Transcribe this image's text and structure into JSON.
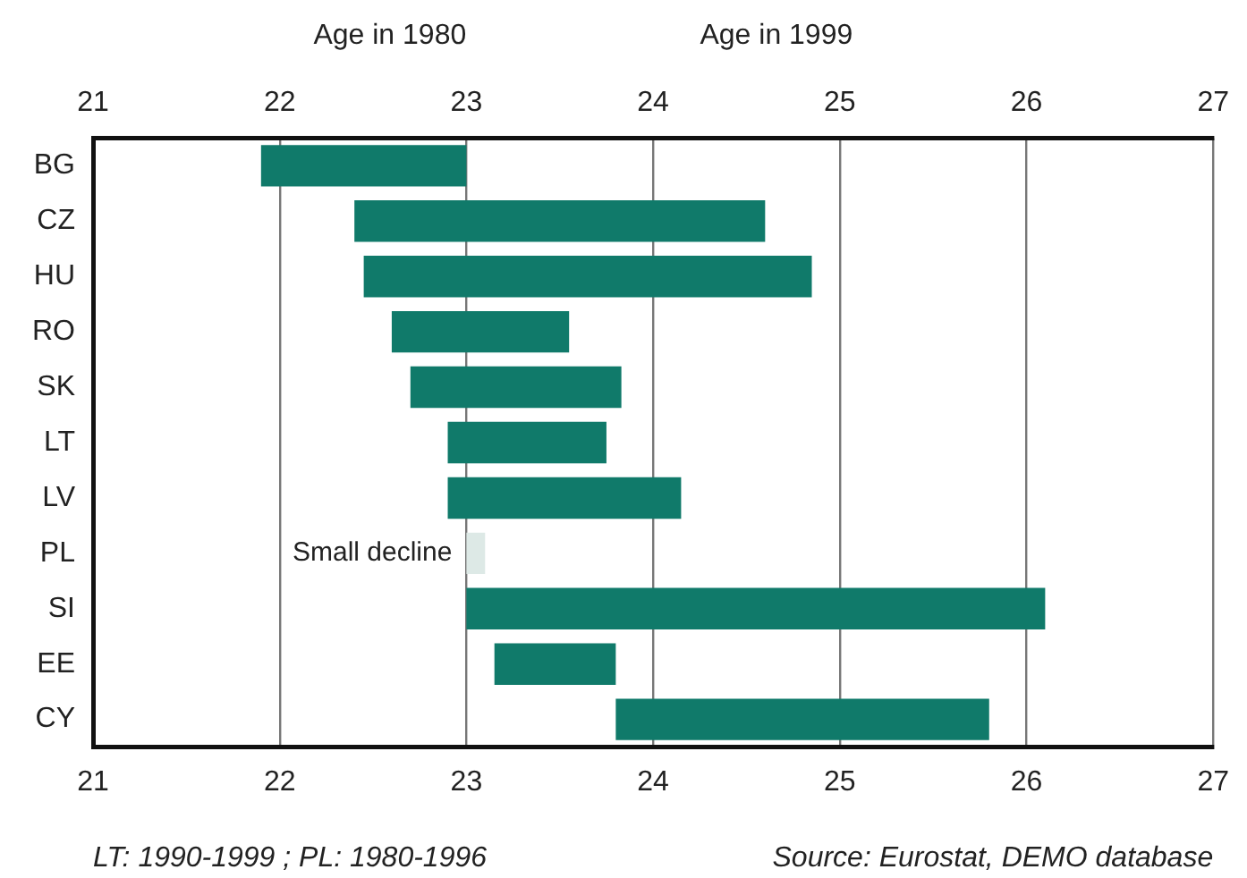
{
  "chart_data": {
    "type": "bar",
    "orientation": "horizontal",
    "categories": [
      "BG",
      "CZ",
      "HU",
      "RO",
      "SK",
      "LT",
      "LV",
      "PL",
      "SI",
      "EE",
      "CY"
    ],
    "base": [
      21.9,
      22.4,
      22.45,
      22.6,
      22.7,
      22.9,
      22.9,
      23.1,
      23.0,
      23.15,
      23.8
    ],
    "values": [
      1.1,
      2.2,
      2.4,
      0.95,
      1.13,
      0.85,
      1.25,
      -0.1,
      3.1,
      0.65,
      2.0
    ],
    "colors": [
      "#107a6a",
      "#107a6a",
      "#107a6a",
      "#107a6a",
      "#107a6a",
      "#107a6a",
      "#107a6a",
      "#dde9e6",
      "#107a6a",
      "#107a6a",
      "#107a6a"
    ],
    "xlim": [
      21,
      27
    ],
    "xticks": [
      21,
      22,
      23,
      24,
      25,
      26,
      27
    ],
    "x2lim": [
      21,
      27
    ],
    "x2ticks": [
      21,
      22,
      23,
      24,
      25,
      26,
      27
    ],
    "grid": "x",
    "legend": false,
    "annotations": [
      "Age in 1980",
      "Age in 1999",
      "LT: 1990-1999 ; PL: 1980-1996",
      "Source: Eurostat, DEMO database",
      {
        "text": "Small decline",
        "x": 23,
        "y": "PL"
      }
    ]
  }
}
